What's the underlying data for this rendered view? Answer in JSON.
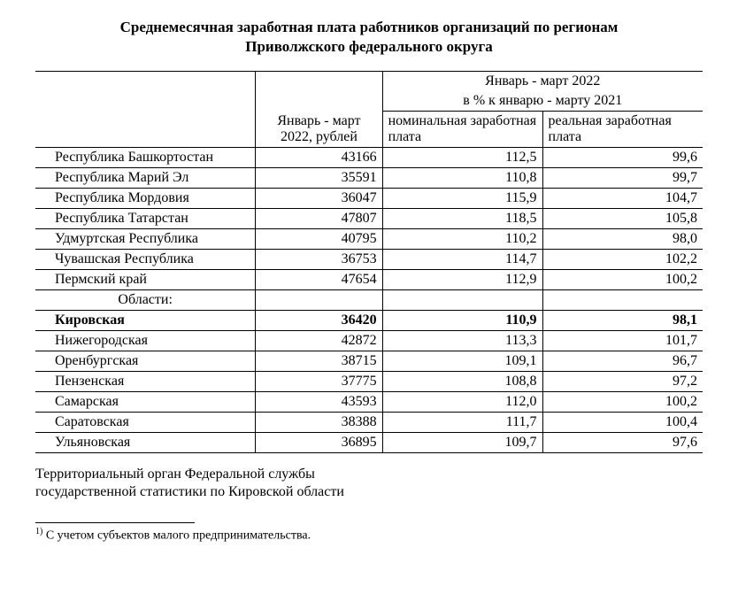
{
  "title_line1": "Среднемесячная заработная плата работников организаций по регионам",
  "title_line2": "Приволжского федерального округа",
  "header": {
    "col1": "Январь - март 2022, рублей",
    "col2_top": "Январь - март 2022",
    "col2_bottom": "в % к январю - марту 2021",
    "col2a": "номинальная заработная плата",
    "col2b": "реальная заработная плата"
  },
  "rows": [
    {
      "region": "Республика Башкортостан",
      "salary": "43166",
      "nominal": "112,5",
      "real": "99,6",
      "bold": false
    },
    {
      "region": "Республика Марий Эл",
      "salary": "35591",
      "nominal": "110,8",
      "real": "99,7",
      "bold": false
    },
    {
      "region": "Республика Мордовия",
      "salary": "36047",
      "nominal": "115,9",
      "real": "104,7",
      "bold": false
    },
    {
      "region": "Республика Татарстан",
      "salary": "47807",
      "nominal": "118,5",
      "real": "105,8",
      "bold": false
    },
    {
      "region": "Удмуртская Республика",
      "salary": "40795",
      "nominal": "110,2",
      "real": "98,0",
      "bold": false
    },
    {
      "region": "Чувашская Республика",
      "salary": "36753",
      "nominal": "114,7",
      "real": "102,2",
      "bold": false
    },
    {
      "region": "Пермский край",
      "salary": "47654",
      "nominal": "112,9",
      "real": "100,2",
      "bold": false
    }
  ],
  "oblast_label": "Области:",
  "oblast_rows": [
    {
      "region": "Кировская",
      "salary": "36420",
      "nominal": "110,9",
      "real": "98,1",
      "bold": true
    },
    {
      "region": "Нижегородская",
      "salary": "42872",
      "nominal": "113,3",
      "real": "101,7",
      "bold": false
    },
    {
      "region": "Оренбургская",
      "salary": "38715",
      "nominal": "109,1",
      "real": "96,7",
      "bold": false
    },
    {
      "region": "Пензенская",
      "salary": "37775",
      "nominal": "108,8",
      "real": "97,2",
      "bold": false
    },
    {
      "region": "Самарская",
      "salary": "43593",
      "nominal": "112,0",
      "real": "100,2",
      "bold": false
    },
    {
      "region": "Саратовская",
      "salary": "38388",
      "nominal": "111,7",
      "real": "100,4",
      "bold": false
    },
    {
      "region": "Ульяновская",
      "salary": "36895",
      "nominal": "109,7",
      "real": "97,6",
      "bold": false
    }
  ],
  "source_line1": "Территориальный орган Федеральной службы",
  "source_line2": "государственной статистики по Кировской области",
  "footnote_marker": "1)",
  "footnote_text": " С учетом субъектов малого предпринимательства.",
  "style": {
    "font_family": "Times New Roman",
    "title_fontsize_pt": 13,
    "body_fontsize_pt": 12,
    "footnote_fontsize_pt": 10,
    "text_color": "#000000",
    "background_color": "#ffffff",
    "border_color": "#000000",
    "col_widths_pct": [
      33,
      19,
      24,
      24
    ]
  }
}
